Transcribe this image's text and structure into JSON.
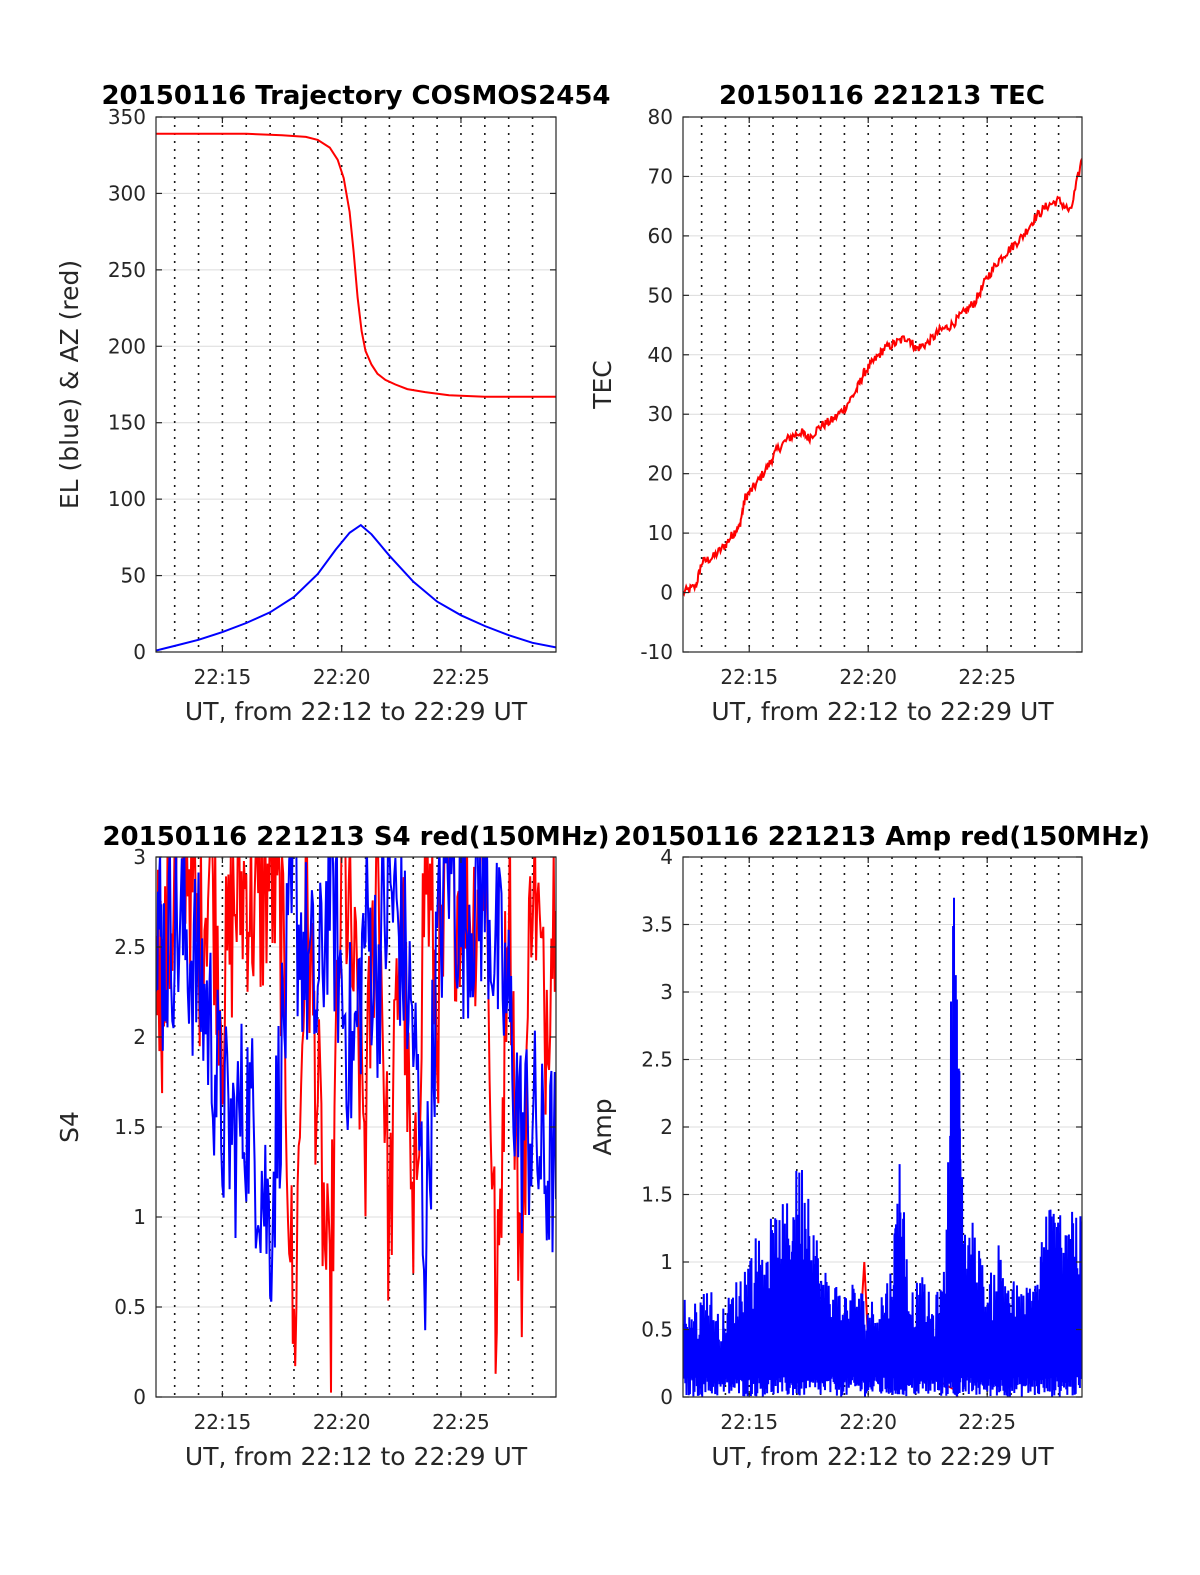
{
  "chart_data": [
    {
      "id": "trajectory",
      "type": "line",
      "title": "20150116 Trajectory COSMOS2454",
      "xlabel": "UT, from 22:12 to 22:29 UT",
      "ylabel": "EL (blue) & AZ (red)",
      "xlim": [
        "22:12:13",
        "22:28:59"
      ],
      "ylim": [
        0,
        350
      ],
      "yticks": [
        0,
        50,
        100,
        150,
        200,
        250,
        300,
        350
      ],
      "xticks": [
        "22:15",
        "22:20",
        "22:25"
      ],
      "grid": "on",
      "series": [
        {
          "color": "#ff0000",
          "x": [
            "22:12:13",
            "22:14:00",
            "22:16:00",
            "22:17:30",
            "22:18:30",
            "22:19:00",
            "22:19:30",
            "22:19:50",
            "22:20:05",
            "22:20:20",
            "22:20:30",
            "22:20:40",
            "22:20:50",
            "22:21:00",
            "22:21:15",
            "22:21:30",
            "22:21:50",
            "22:22:15",
            "22:22:45",
            "22:23:30",
            "22:24:30",
            "22:26:00",
            "22:28:59"
          ],
          "values": [
            339,
            339,
            339,
            338,
            337,
            335,
            330,
            322,
            310,
            288,
            262,
            232,
            210,
            197,
            188,
            182,
            178,
            175,
            172,
            170,
            168,
            167,
            167
          ]
        },
        {
          "color": "#0000ff",
          "x": [
            "22:12:13",
            "22:13:00",
            "22:14:00",
            "22:15:00",
            "22:16:00",
            "22:17:00",
            "22:18:00",
            "22:19:00",
            "22:19:45",
            "22:20:20",
            "22:20:48",
            "22:21:15",
            "22:22:00",
            "22:23:00",
            "22:24:00",
            "22:25:00",
            "22:26:00",
            "22:27:00",
            "22:28:00",
            "22:28:59"
          ],
          "values": [
            1,
            4,
            8,
            13,
            19,
            26,
            36,
            51,
            67,
            78,
            83,
            77,
            63,
            46,
            33,
            24,
            17,
            11,
            6,
            3
          ]
        }
      ]
    },
    {
      "id": "tec",
      "type": "line",
      "title": "20150116 221213 TEC",
      "xlabel": "UT, from 22:12 to 22:29 UT",
      "ylabel": "TEC",
      "xlim": [
        "22:12:13",
        "22:28:59"
      ],
      "ylim": [
        -10,
        80
      ],
      "yticks": [
        -10,
        0,
        10,
        20,
        30,
        40,
        50,
        60,
        70,
        80
      ],
      "xticks": [
        "22:15",
        "22:20",
        "22:25"
      ],
      "grid": "on",
      "series": [
        {
          "color": "#ff0000",
          "x": [
            "22:12:13",
            "22:12:45",
            "22:13:00",
            "22:13:30",
            "22:14:00",
            "22:14:20",
            "22:14:35",
            "22:14:50",
            "22:15:15",
            "22:15:45",
            "22:16:10",
            "22:16:40",
            "22:17:10",
            "22:17:30",
            "22:18:00",
            "22:18:30",
            "22:19:00",
            "22:19:30",
            "22:19:50",
            "22:20:15",
            "22:20:40",
            "22:21:10",
            "22:21:40",
            "22:22:00",
            "22:22:30",
            "22:23:00",
            "22:23:30",
            "22:24:00",
            "22:24:30",
            "22:25:00",
            "22:25:30",
            "22:26:00",
            "22:26:30",
            "22:27:00",
            "22:27:30",
            "22:28:00",
            "22:28:30",
            "22:28:59"
          ],
          "values": [
            0,
            1,
            5,
            6,
            8,
            10,
            11,
            16,
            18,
            21,
            24,
            26,
            27,
            26,
            28,
            29,
            31,
            34,
            37,
            39,
            41,
            42,
            43,
            41,
            42,
            44,
            45,
            47,
            49,
            53,
            56,
            58,
            60,
            63,
            65,
            66,
            64,
            73
          ]
        }
      ]
    },
    {
      "id": "s4",
      "type": "line",
      "title": "20150116 221213 S4 red(150MHz)",
      "xlabel": "UT, from 22:12 to 22:29 UT",
      "ylabel": "S4",
      "xlim": [
        "22:12:13",
        "22:28:59"
      ],
      "ylim": [
        0,
        3
      ],
      "yticks": [
        0,
        0.5,
        1,
        1.5,
        2,
        2.5,
        3
      ],
      "ytick_labels": [
        "0",
        "0.5",
        "1",
        "1.5",
        "2",
        "2.5",
        "3"
      ],
      "xticks": [
        "22:15",
        "22:20",
        "22:25"
      ],
      "grid": "on",
      "series": [
        {
          "color": "#ff0000",
          "x": [
            "22:12:13",
            "22:12:30",
            "22:13:00",
            "22:13:30",
            "22:14:00",
            "22:14:30",
            "22:15:00",
            "22:15:30",
            "22:16:00",
            "22:16:30",
            "22:17:00",
            "22:17:30",
            "22:18:00",
            "22:18:30",
            "22:19:00",
            "22:19:30",
            "22:20:00",
            "22:20:30",
            "22:21:00",
            "22:21:30",
            "22:22:00",
            "22:22:30",
            "22:23:00",
            "22:23:30",
            "22:24:00",
            "22:24:30",
            "22:25:00",
            "22:25:30",
            "22:26:00",
            "22:26:30",
            "22:27:00",
            "22:27:30",
            "22:28:00",
            "22:28:30",
            "22:28:59"
          ],
          "values": [
            2.4,
            2.0,
            2.6,
            2.9,
            2.2,
            2.8,
            1.9,
            2.5,
            2.6,
            2.4,
            2.7,
            2.3,
            0.0,
            2.6,
            1.4,
            0.1,
            2.8,
            2.1,
            1.2,
            2.9,
            0.6,
            2.7,
            0.4,
            2.8,
            1.9,
            2.5,
            2.6,
            2.4,
            2.9,
            0.0,
            2.8,
            0.3,
            2.9,
            1.8,
            2.7
          ]
        },
        {
          "color": "#0000ff",
          "x": [
            "22:12:13",
            "22:12:30",
            "22:13:00",
            "22:13:30",
            "22:14:00",
            "22:14:30",
            "22:15:00",
            "22:15:30",
            "22:16:00",
            "22:16:30",
            "22:17:00",
            "22:17:30",
            "22:18:00",
            "22:18:30",
            "22:19:00",
            "22:19:30",
            "22:20:00",
            "22:20:30",
            "22:21:00",
            "22:21:30",
            "22:22:00",
            "22:22:30",
            "22:23:00",
            "22:23:30",
            "22:24:00",
            "22:24:30",
            "22:25:00",
            "22:25:30",
            "22:26:00",
            "22:26:30",
            "22:27:00",
            "22:27:30",
            "22:28:00",
            "22:28:30",
            "22:28:59"
          ],
          "values": [
            2.6,
            2.2,
            2.4,
            2.3,
            2.1,
            1.8,
            1.3,
            1.2,
            1.4,
            1.1,
            0.7,
            1.7,
            2.5,
            2.2,
            1.9,
            2.7,
            2.0,
            1.6,
            2.4,
            2.1,
            2.6,
            2.3,
            1.8,
            0.6,
            2.2,
            2.8,
            2.4,
            2.5,
            2.6,
            2.2,
            1.9,
            1.2,
            1.3,
            1.0,
            1.1
          ]
        }
      ]
    },
    {
      "id": "amp",
      "type": "line",
      "title": "20150116 221213 Amp red(150MHz)",
      "xlabel": "UT, from 22:12 to 22:29 UT",
      "ylabel": "Amp",
      "xlim": [
        "22:12:13",
        "22:28:59"
      ],
      "ylim": [
        0,
        4
      ],
      "yticks": [
        0,
        0.5,
        1,
        1.5,
        2,
        2.5,
        3,
        3.5,
        4
      ],
      "ytick_labels": [
        "0",
        "0.5",
        "1",
        "1.5",
        "2",
        "2.5",
        "3",
        "3.5",
        "4"
      ],
      "xticks": [
        "22:15",
        "22:20",
        "22:25"
      ],
      "grid": "on",
      "series": [
        {
          "color": "#ff0000",
          "x": [
            "22:19:40",
            "22:19:50",
            "22:20:00",
            "22:23:40",
            "22:23:45"
          ],
          "values": [
            0.5,
            1.0,
            0.4,
            0.05,
            0.0
          ]
        },
        {
          "color": "#0000ff",
          "x": [
            "22:12:13",
            "22:12:45",
            "22:13:15",
            "22:13:45",
            "22:14:15",
            "22:14:45",
            "22:15:15",
            "22:15:45",
            "22:16:15",
            "22:16:45",
            "22:17:05",
            "22:17:30",
            "22:18:00",
            "22:18:30",
            "22:19:00",
            "22:19:30",
            "22:20:00",
            "22:20:30",
            "22:21:00",
            "22:21:20",
            "22:21:45",
            "22:22:15",
            "22:22:45",
            "22:23:15",
            "22:23:35",
            "22:23:45",
            "22:24:00",
            "22:24:30",
            "22:25:00",
            "22:25:30",
            "22:26:00",
            "22:26:30",
            "22:27:00",
            "22:27:30",
            "22:28:00",
            "22:28:30",
            "22:28:59"
          ],
          "values": [
            0.8,
            0.7,
            0.9,
            0.6,
            0.8,
            1.0,
            1.2,
            1.3,
            1.4,
            1.5,
            1.8,
            1.7,
            1.0,
            0.9,
            0.8,
            0.9,
            0.7,
            0.8,
            1.0,
            1.9,
            0.8,
            0.9,
            0.7,
            1.0,
            3.9,
            3.0,
            1.4,
            1.3,
            0.8,
            1.2,
            0.9,
            0.8,
            0.9,
            1.5,
            1.4,
            1.6,
            1.3
          ]
        }
      ]
    }
  ]
}
